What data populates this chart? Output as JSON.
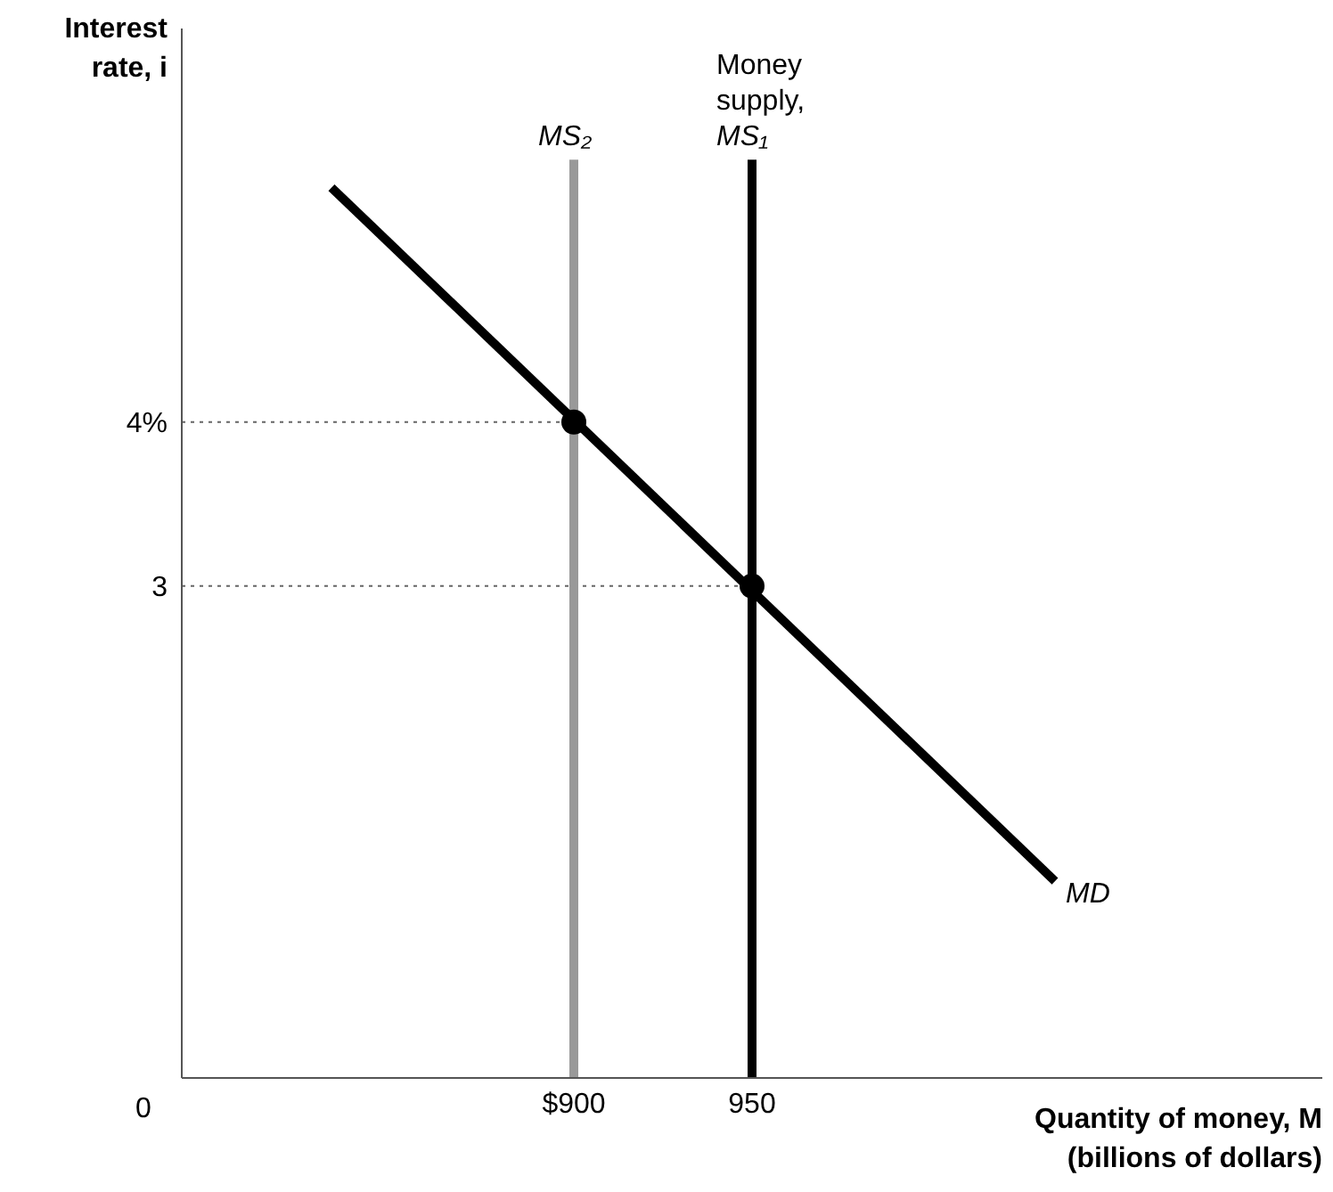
{
  "chart_data": {
    "type": "line",
    "xlabel": "Quantity of money, M (billions of dollars)",
    "ylabel": "Interest rate, i",
    "xlim": [
      790,
      1110
    ],
    "xticks": [
      {
        "value": 900,
        "label": "$900"
      },
      950
    ],
    "annotations": [
      "0"
    ],
    "ylim": [
      0,
      6.4
    ],
    "yticks": [
      3,
      {
        "value": 4,
        "label": "4%"
      }
    ],
    "series": [
      {
        "type": "line",
        "line_style": "dotted",
        "color": "#666666",
        "x": [
          790,
          900
        ],
        "values": [
          4,
          4
        ]
      },
      {
        "type": "line",
        "line_style": "dotted",
        "color": "#666666",
        "x": [
          790,
          950
        ],
        "values": [
          3,
          3
        ]
      },
      {
        "type": "line",
        "name": "MS₂",
        "color": "#999999",
        "marker": "none",
        "line_style": "solid",
        "x": [
          900,
          900
        ],
        "values": [
          0,
          5.6
        ]
      },
      {
        "type": "line",
        "name": "Money supply, MS₁",
        "color": "#000000",
        "marker": "none",
        "line_style": "solid",
        "x": [
          950,
          950
        ],
        "values": [
          0,
          5.6
        ]
      },
      {
        "type": "line",
        "name": "MD",
        "color": "#000000",
        "marker": "none",
        "line_style": "solid",
        "x": [
          832,
          1035
        ],
        "values": [
          5.43,
          1.2
        ]
      },
      {
        "type": "scatter",
        "color": "#000000",
        "marker": "circle",
        "x": [
          900,
          950
        ],
        "values": [
          4,
          3
        ]
      }
    ]
  }
}
